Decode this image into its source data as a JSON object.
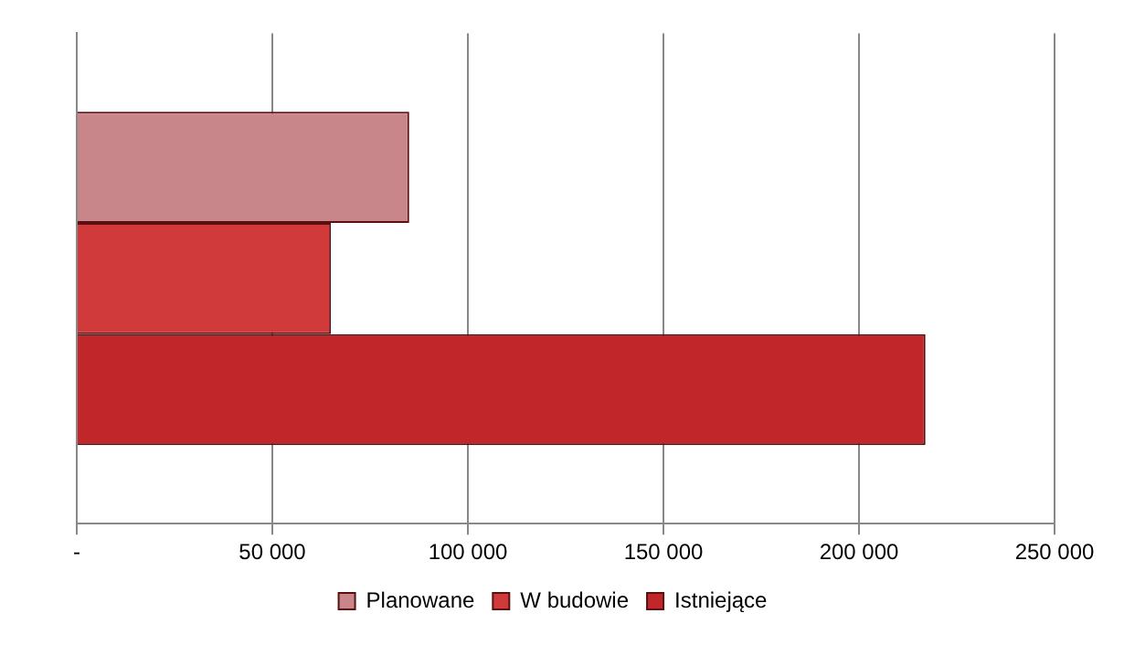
{
  "chart_data": {
    "type": "bar",
    "orientation": "horizontal",
    "categories": [
      null
    ],
    "series": [
      {
        "name": "Planowane",
        "color": "#c9868a",
        "values": [
          85000
        ]
      },
      {
        "name": "W budowie",
        "color": "#d03a3a",
        "values": [
          65000
        ]
      },
      {
        "name": "Istniejące",
        "color": "#c0262a",
        "values": [
          217000
        ]
      }
    ],
    "xlim": [
      0,
      250000
    ],
    "xticks": [
      {
        "value": 0,
        "label": "-"
      },
      {
        "value": 50000,
        "label": "50 000"
      },
      {
        "value": 100000,
        "label": "100 000"
      },
      {
        "value": 150000,
        "label": "150 000"
      },
      {
        "value": 200000,
        "label": "200 000"
      },
      {
        "value": 250000,
        "label": "250 000"
      }
    ],
    "grid": "x",
    "legend": "bottom"
  }
}
